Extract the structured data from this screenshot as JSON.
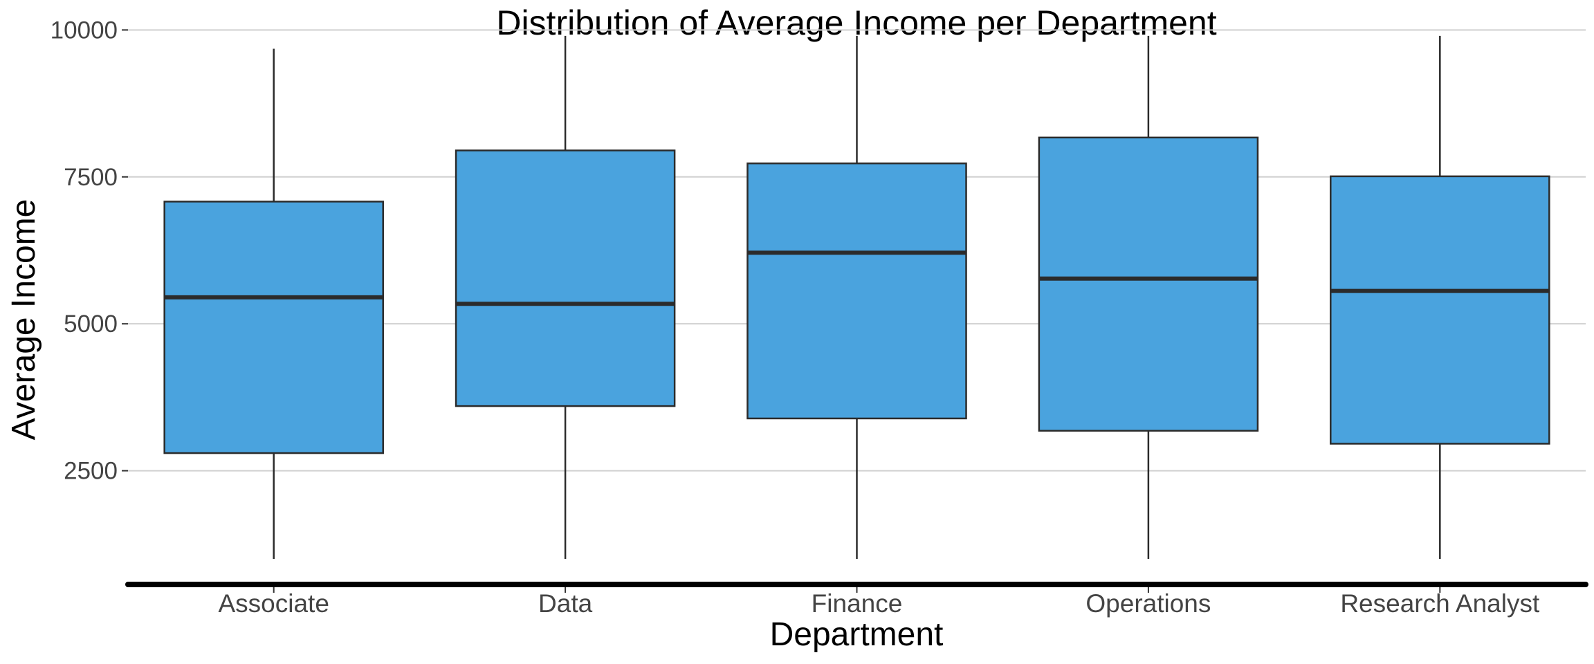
{
  "chart_data": {
    "type": "boxplot",
    "title": "Distribution of Average Income per Department",
    "xlabel": "Department",
    "ylabel": "Average Income",
    "ylim": [
      565,
      10510
    ],
    "yticks": [
      2500,
      5000,
      7500,
      10000
    ],
    "ytick_labels": [
      "2500",
      "5000",
      "7500",
      "10000"
    ],
    "grid": "horizontal",
    "legend": "none",
    "categories": [
      "Associate",
      "Data",
      "Finance",
      "Operations",
      "Research Analyst"
    ],
    "series": [
      {
        "name": "Associate",
        "min": 1000,
        "q1": 2800,
        "median": 5450,
        "q3": 7080,
        "max": 9680
      },
      {
        "name": "Data",
        "min": 1000,
        "q1": 3600,
        "median": 5340,
        "q3": 7950,
        "max": 9900
      },
      {
        "name": "Finance",
        "min": 1000,
        "q1": 3390,
        "median": 6210,
        "q3": 7730,
        "max": 9900
      },
      {
        "name": "Operations",
        "min": 1000,
        "q1": 3180,
        "median": 5770,
        "q3": 8170,
        "max": 9900
      },
      {
        "name": "Research Analyst",
        "min": 1000,
        "q1": 2960,
        "median": 5560,
        "q3": 7510,
        "max": 9900
      }
    ],
    "colors": {
      "box_fill": "#4aa3de",
      "box_stroke": "#2b2b2b",
      "median": "#2b2b2b",
      "grid": "#d0d0d0",
      "axis_line": "#000000"
    }
  }
}
